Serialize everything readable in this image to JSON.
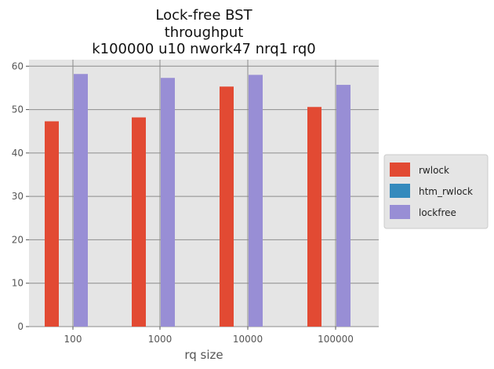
{
  "chart_data": {
    "type": "bar",
    "title_lines": [
      "Lock-free BST",
      "throughput",
      "k100000 u10 nwork47 nrq1 rq0"
    ],
    "xlabel": "rq size",
    "ylabel": "",
    "categories": [
      "100",
      "1000",
      "10000",
      "100000"
    ],
    "ylim": [
      0,
      61.5
    ],
    "yticks": [
      0,
      10,
      20,
      30,
      40,
      50,
      60
    ],
    "grid": true,
    "legend_position": "right",
    "series": [
      {
        "name": "rwlock",
        "color": "#E24A33",
        "values": [
          47.3,
          48.2,
          55.3,
          50.6
        ]
      },
      {
        "name": "htm_rwlock",
        "color": "#348ABD",
        "values": [
          0,
          0,
          0,
          0
        ]
      },
      {
        "name": "lockfree",
        "color": "#988ED5",
        "values": [
          58.2,
          57.3,
          58.0,
          55.7
        ]
      }
    ]
  }
}
